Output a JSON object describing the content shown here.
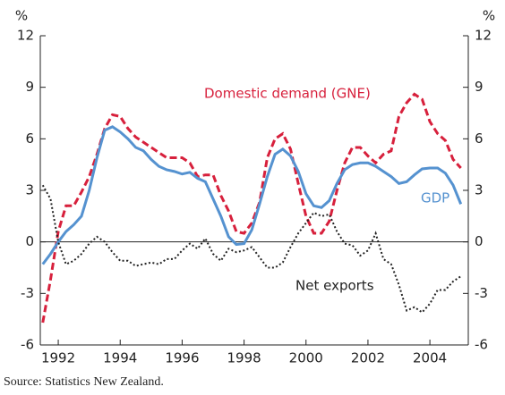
{
  "chart_data": {
    "type": "line",
    "y_label": "%",
    "y2_label": "%",
    "x": [
      1991.5,
      1991.75,
      1992,
      1992.25,
      1992.5,
      1992.75,
      1993,
      1993.25,
      1993.5,
      1993.75,
      1994,
      1994.25,
      1994.5,
      1994.75,
      1995,
      1995.25,
      1995.5,
      1995.75,
      1996,
      1996.25,
      1996.5,
      1996.75,
      1997,
      1997.25,
      1997.5,
      1997.75,
      1998,
      1998.25,
      1998.5,
      1998.75,
      1999,
      1999.25,
      1999.5,
      1999.75,
      2000,
      2000.25,
      2000.5,
      2000.75,
      2001,
      2001.25,
      2001.5,
      2001.75,
      2002,
      2002.25,
      2002.5,
      2002.75,
      2003,
      2003.25,
      2003.5,
      2003.75,
      2004,
      2004.25,
      2004.5,
      2004.75,
      2005
    ],
    "series": [
      {
        "name": "Domestic demand (GNE)",
        "color": "#d7203c",
        "dash": "dashed",
        "values": [
          -4.7,
          -2.2,
          0.6,
          2.1,
          2.1,
          2.9,
          3.8,
          5.1,
          6.6,
          7.4,
          7.3,
          6.6,
          6.1,
          5.8,
          5.5,
          5.2,
          4.9,
          4.9,
          4.9,
          4.6,
          3.8,
          3.9,
          3.9,
          2.7,
          1.8,
          0.6,
          0.5,
          1.1,
          2.3,
          4.9,
          6.0,
          6.3,
          5.4,
          3.4,
          1.5,
          0.5,
          0.5,
          1.2,
          3.0,
          4.6,
          5.5,
          5.5,
          5.0,
          4.6,
          5.1,
          5.3,
          7.3,
          8.1,
          8.6,
          8.3,
          7.0,
          6.3,
          5.9,
          4.8,
          4.3
        ]
      },
      {
        "name": "GDP",
        "color": "#5592d0",
        "dash": "solid",
        "values": [
          -1.3,
          -0.7,
          0.0,
          0.6,
          1.0,
          1.5,
          3.0,
          4.9,
          6.5,
          6.7,
          6.4,
          6.0,
          5.5,
          5.3,
          4.8,
          4.4,
          4.2,
          4.1,
          3.95,
          4.05,
          3.7,
          3.5,
          2.5,
          1.5,
          0.3,
          -0.15,
          -0.1,
          0.7,
          2.2,
          3.8,
          5.1,
          5.4,
          5.0,
          4.1,
          2.8,
          2.1,
          2.0,
          2.4,
          3.4,
          4.2,
          4.5,
          4.6,
          4.6,
          4.4,
          4.1,
          3.8,
          3.4,
          3.5,
          3.9,
          4.25,
          4.3,
          4.3,
          4.0,
          3.3,
          2.2
        ]
      },
      {
        "name": "Net exports",
        "color": "#222222",
        "dash": "dotted",
        "values": [
          3.3,
          2.5,
          0.0,
          -1.3,
          -1.1,
          -0.7,
          -0.1,
          0.3,
          0.0,
          -0.6,
          -1.1,
          -1.1,
          -1.4,
          -1.3,
          -1.2,
          -1.3,
          -1.0,
          -1.0,
          -0.5,
          -0.1,
          -0.4,
          0.2,
          -0.7,
          -1.1,
          -0.4,
          -0.6,
          -0.5,
          -0.3,
          -0.9,
          -1.5,
          -1.5,
          -1.2,
          -0.3,
          0.5,
          1.1,
          1.7,
          1.5,
          1.6,
          0.6,
          -0.1,
          -0.2,
          -0.8,
          -0.5,
          0.5,
          -1.0,
          -1.3,
          -2.5,
          -4.0,
          -3.8,
          -4.1,
          -3.6,
          -2.8,
          -2.8,
          -2.3,
          -2.0
        ]
      }
    ],
    "xlim": [
      1991.42,
      2005.24
    ],
    "xticks": [
      1992,
      1994,
      1996,
      1998,
      2000,
      2002,
      2004
    ],
    "ylim": [
      -6,
      12
    ],
    "yticks": [
      -6,
      -3,
      0,
      3,
      6,
      9,
      12
    ],
    "y2lim": [
      -6,
      12
    ],
    "y2ticks": [
      -6,
      -3,
      0,
      3,
      6,
      9,
      12
    ],
    "zero_line": true,
    "source": "Source: Statistics New Zealand."
  }
}
